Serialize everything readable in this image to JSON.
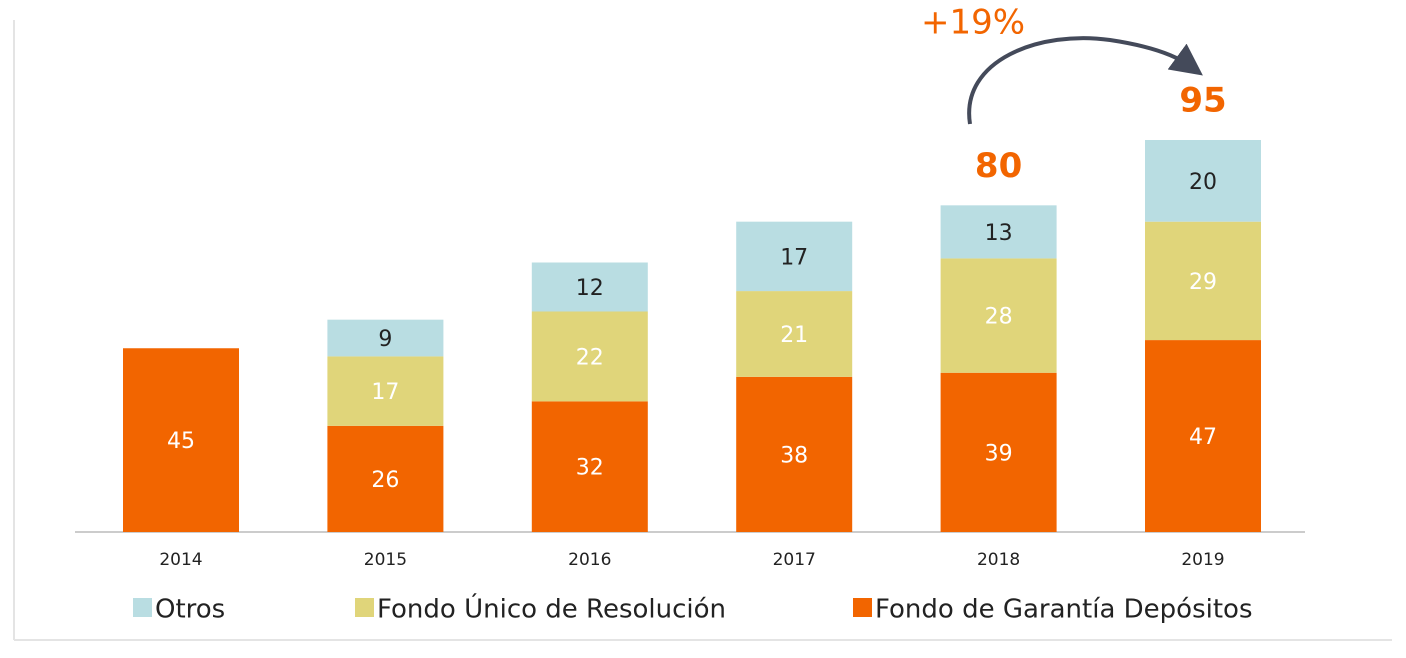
{
  "chart_data": {
    "type": "bar",
    "stacked": true,
    "categories": [
      "2014",
      "2015",
      "2016",
      "2017",
      "2018",
      "2019"
    ],
    "series": [
      {
        "name": "Fondo de Garantía Depósitos",
        "color": "#f26500",
        "values": [
          45,
          26,
          32,
          38,
          39,
          47
        ]
      },
      {
        "name": "Fondo Único de Resolución",
        "color": "#e0d57a",
        "values": [
          null,
          17,
          22,
          21,
          28,
          29
        ]
      },
      {
        "name": "Otros",
        "color": "#b9dde2",
        "values": [
          null,
          9,
          12,
          17,
          13,
          20
        ]
      }
    ],
    "totals": [
      null,
      null,
      null,
      null,
      80,
      95
    ],
    "annotation": "+19%"
  }
}
